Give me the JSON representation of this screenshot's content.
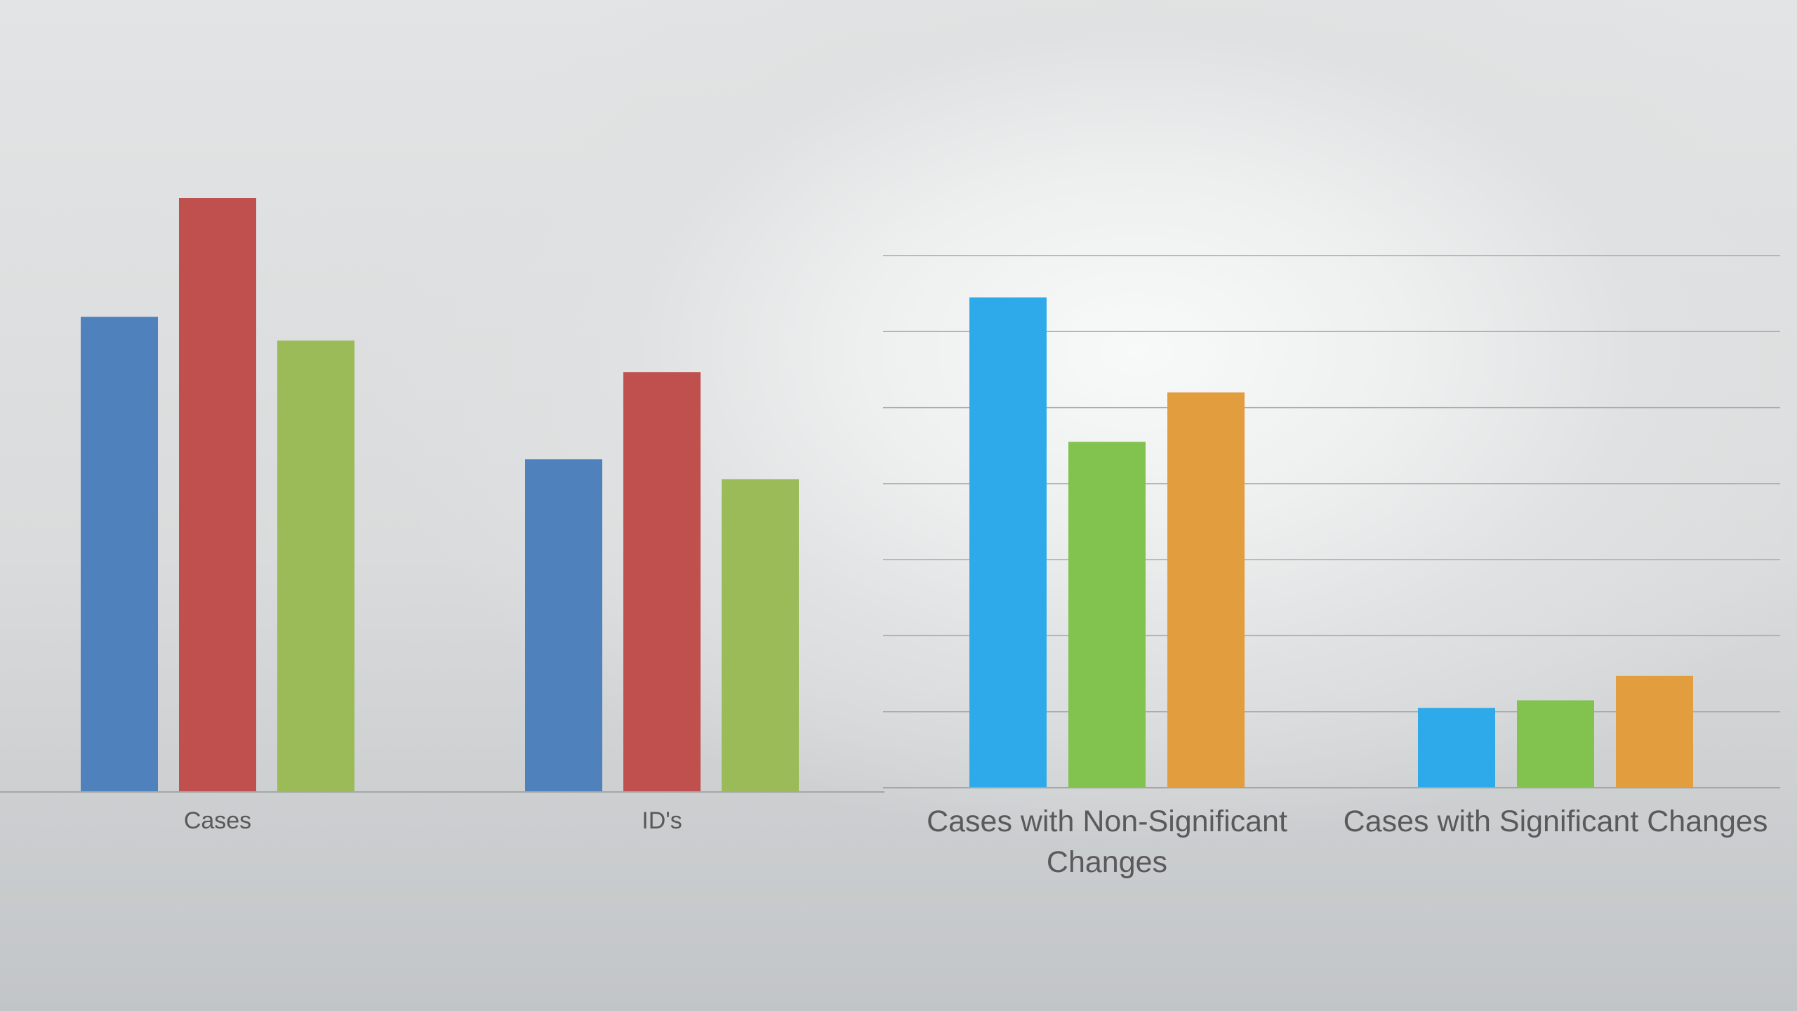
{
  "chart_data": [
    {
      "type": "bar",
      "categories": [
        "Cases",
        "ID's"
      ],
      "series": [
        {
          "values": [
            60,
            42
          ],
          "color": "#4f81bd"
        },
        {
          "values": [
            75,
            53
          ],
          "color": "#c0504d"
        },
        {
          "values": [
            57,
            39.5
          ],
          "color": "#9bbb59"
        }
      ],
      "ylim": [
        0,
        100
      ],
      "grid": false
    },
    {
      "type": "bar",
      "categories": [
        "Cases with Non-Significant Changes",
        "Cases with Significant Changes"
      ],
      "series": [
        {
          "values": [
            6.45,
            1.05
          ],
          "color": "#2eaaea"
        },
        {
          "values": [
            4.55,
            1.15
          ],
          "color": "#82c350"
        },
        {
          "values": [
            5.2,
            1.47
          ],
          "color": "#e29d3f"
        }
      ],
      "ylim": [
        0,
        7
      ],
      "grid": true
    }
  ]
}
